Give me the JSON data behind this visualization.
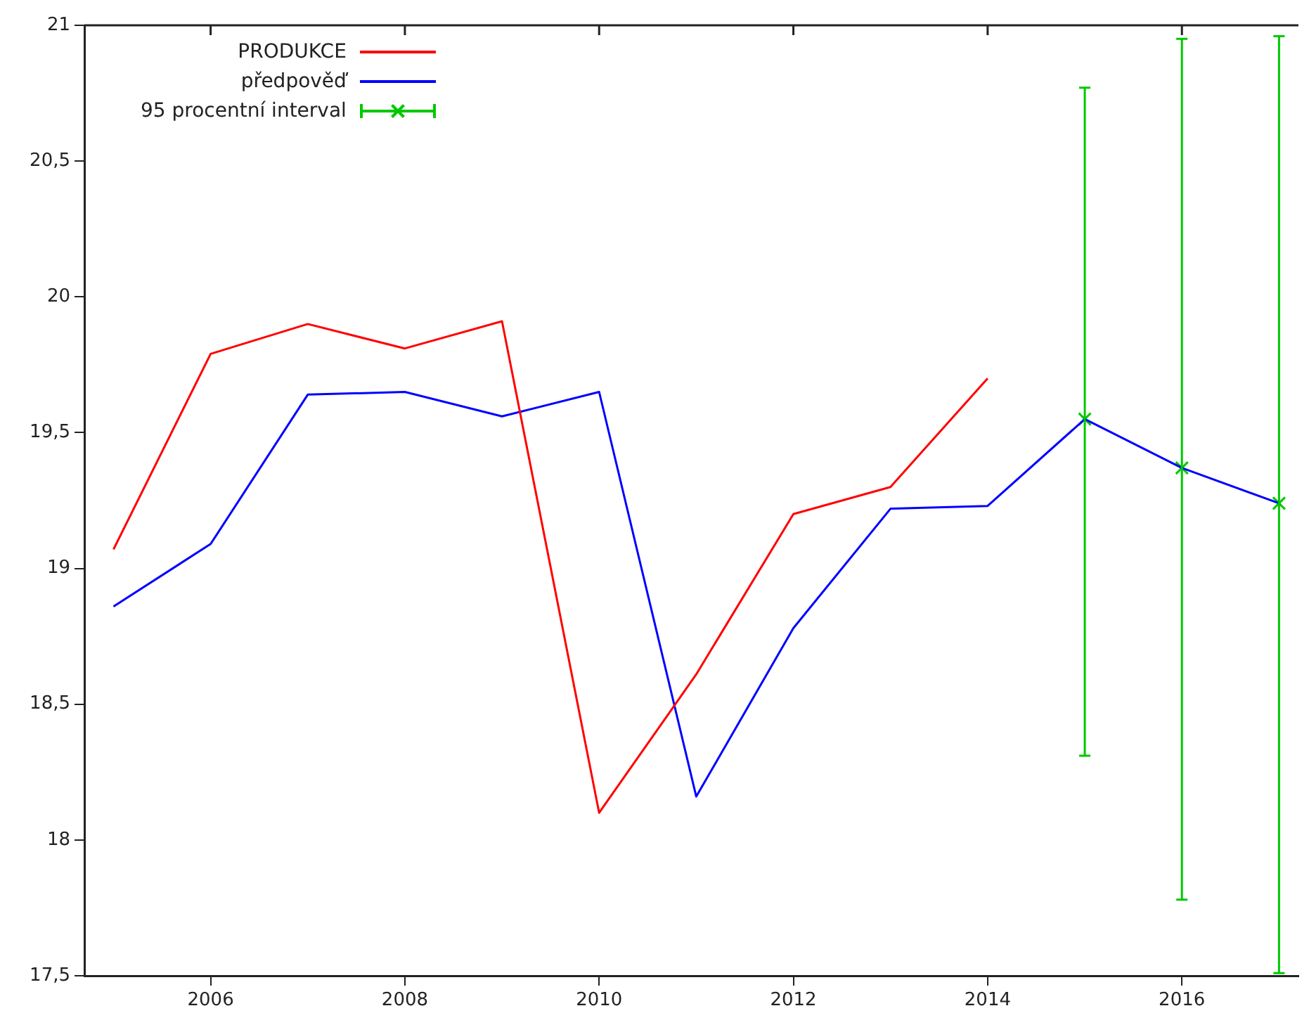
{
  "chart_data": {
    "type": "line",
    "legend": "top left",
    "grid": false,
    "marker": "none",
    "xlim": [
      2004.7,
      2017.2
    ],
    "xticks": [
      2006,
      2008,
      2010,
      2012,
      2014,
      2016
    ],
    "ylim": [
      17.5,
      21
    ],
    "yticks": [
      {
        "value": 17.5,
        "label": "17,5"
      },
      {
        "value": 18,
        "label": "18"
      },
      {
        "value": 18.5,
        "label": "18,5"
      },
      {
        "value": 19,
        "label": "19"
      },
      {
        "value": 19.5,
        "label": "19,5"
      },
      {
        "value": 20,
        "label": "20"
      },
      {
        "value": 20.5,
        "label": "20,5"
      },
      {
        "value": 21,
        "label": "21"
      }
    ],
    "series": [
      {
        "name": "PRODUKCE",
        "color": "#ff0000",
        "x": [
          2005,
          2006,
          2007,
          2008,
          2009,
          2010,
          2011,
          2012,
          2013,
          2014
        ],
        "values": [
          19.07,
          19.79,
          19.9,
          19.81,
          19.91,
          18.1,
          18.61,
          19.2,
          19.3,
          19.7
        ]
      },
      {
        "name": "předpověď",
        "color": "#0000ff",
        "x": [
          2005,
          2006,
          2007,
          2008,
          2009,
          2010,
          2011,
          2012,
          2013,
          2014,
          2015,
          2016,
          2017
        ],
        "values": [
          18.86,
          19.09,
          19.64,
          19.65,
          19.56,
          19.65,
          18.16,
          18.78,
          19.22,
          19.23,
          19.55,
          19.37,
          19.24
        ]
      },
      {
        "name": "95 procentní interval",
        "type": "scatter",
        "marker": "cross",
        "color": "#00c800",
        "x": [
          2015,
          2016,
          2017
        ],
        "values": [
          19.55,
          19.37,
          19.24
        ],
        "errors": [
          [
            18.31,
            20.77
          ],
          [
            17.78,
            20.95
          ],
          [
            17.51,
            20.96
          ]
        ]
      }
    ]
  }
}
